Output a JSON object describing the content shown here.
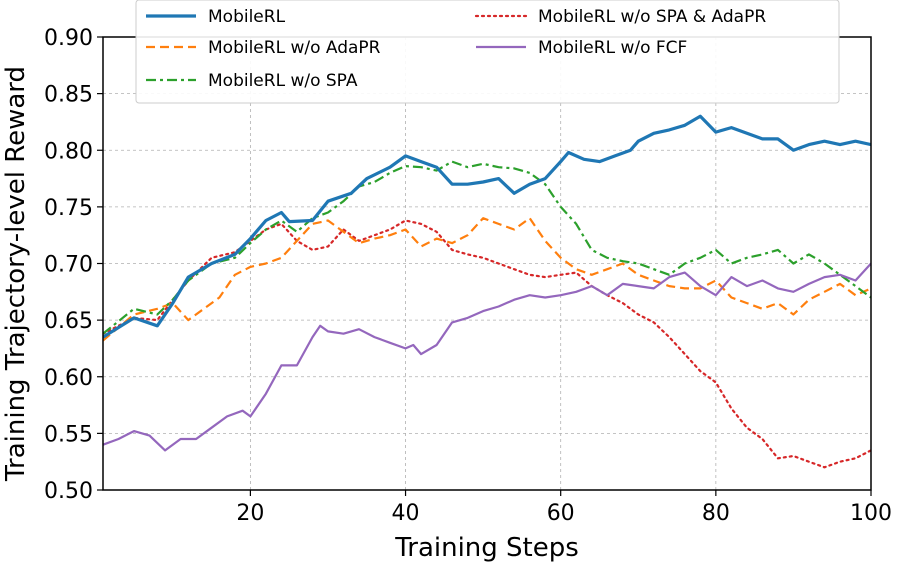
{
  "chart_data": {
    "type": "line",
    "title": "",
    "xlabel": "Training Steps",
    "ylabel": "Training Trajectory-level Reward",
    "xlim": [
      1,
      100
    ],
    "ylim": [
      0.5,
      0.9
    ],
    "xticks": [
      20,
      40,
      60,
      80,
      100
    ],
    "yticks": [
      0.5,
      0.55,
      0.6,
      0.65,
      0.7,
      0.75,
      0.8,
      0.85,
      0.9
    ],
    "xtick_labels": [
      "20",
      "40",
      "60",
      "80",
      "100"
    ],
    "ytick_labels": [
      "0.50",
      "0.55",
      "0.60",
      "0.65",
      "0.70",
      "0.75",
      "0.80",
      "0.85",
      "0.90"
    ],
    "grid": true,
    "legend_position": "top-center",
    "series": [
      {
        "name": "MobileRL",
        "color": "#1f77b4",
        "dash": "solid",
        "x": [
          1,
          5,
          8,
          10,
          12,
          15,
          18,
          20,
          22,
          24,
          25,
          28,
          30,
          33,
          35,
          38,
          40,
          42,
          44,
          46,
          48,
          50,
          52,
          54,
          56,
          58,
          60,
          61,
          63,
          65,
          67,
          69,
          70,
          72,
          74,
          76,
          78,
          80,
          82,
          84,
          86,
          88,
          90,
          92,
          94,
          96,
          98,
          100
        ],
        "values": [
          0.635,
          0.652,
          0.645,
          0.665,
          0.688,
          0.7,
          0.708,
          0.722,
          0.738,
          0.745,
          0.737,
          0.738,
          0.755,
          0.762,
          0.775,
          0.785,
          0.795,
          0.79,
          0.785,
          0.77,
          0.77,
          0.772,
          0.775,
          0.762,
          0.77,
          0.775,
          0.79,
          0.798,
          0.792,
          0.79,
          0.795,
          0.8,
          0.808,
          0.815,
          0.818,
          0.822,
          0.83,
          0.816,
          0.82,
          0.815,
          0.81,
          0.81,
          0.8,
          0.805,
          0.808,
          0.805,
          0.808,
          0.805
        ]
      },
      {
        "name": "MobileRL w/o AdaPR",
        "color": "#ff7f0e",
        "dash": "dashed",
        "x": [
          1,
          5,
          8,
          10,
          12,
          14,
          16,
          18,
          20,
          22,
          24,
          26,
          28,
          30,
          32,
          34,
          36,
          38,
          40,
          42,
          44,
          46,
          48,
          50,
          52,
          54,
          56,
          58,
          60,
          62,
          64,
          66,
          68,
          70,
          72,
          74,
          76,
          78,
          80,
          82,
          84,
          86,
          88,
          90,
          92,
          94,
          96,
          98,
          100
        ],
        "values": [
          0.632,
          0.655,
          0.66,
          0.665,
          0.65,
          0.66,
          0.67,
          0.69,
          0.697,
          0.7,
          0.705,
          0.72,
          0.735,
          0.738,
          0.728,
          0.718,
          0.722,
          0.725,
          0.73,
          0.715,
          0.722,
          0.718,
          0.725,
          0.74,
          0.735,
          0.73,
          0.74,
          0.72,
          0.705,
          0.695,
          0.69,
          0.695,
          0.7,
          0.69,
          0.685,
          0.68,
          0.678,
          0.678,
          0.685,
          0.67,
          0.665,
          0.66,
          0.665,
          0.655,
          0.668,
          0.675,
          0.682,
          0.672,
          0.678
        ]
      },
      {
        "name": "MobileRL w/o SPA",
        "color": "#2ca02c",
        "dash": "dashdot",
        "x": [
          1,
          5,
          8,
          10,
          12,
          15,
          18,
          20,
          22,
          24,
          26,
          28,
          30,
          32,
          34,
          36,
          38,
          40,
          42,
          44,
          46,
          48,
          50,
          52,
          54,
          56,
          58,
          60,
          62,
          64,
          66,
          68,
          70,
          72,
          74,
          76,
          78,
          80,
          82,
          84,
          86,
          88,
          90,
          92,
          94,
          96,
          98,
          100
        ],
        "values": [
          0.638,
          0.66,
          0.655,
          0.668,
          0.685,
          0.7,
          0.705,
          0.718,
          0.73,
          0.738,
          0.728,
          0.74,
          0.745,
          0.755,
          0.768,
          0.772,
          0.78,
          0.786,
          0.785,
          0.782,
          0.79,
          0.785,
          0.788,
          0.785,
          0.784,
          0.78,
          0.77,
          0.75,
          0.735,
          0.712,
          0.705,
          0.702,
          0.7,
          0.695,
          0.69,
          0.7,
          0.705,
          0.712,
          0.7,
          0.705,
          0.708,
          0.712,
          0.7,
          0.708,
          0.7,
          0.69,
          0.68,
          0.67
        ]
      },
      {
        "name": "MobileRL w/o SPA & AdaPR",
        "color": "#d62728",
        "dash": "dotted",
        "x": [
          1,
          5,
          8,
          10,
          12,
          15,
          18,
          20,
          22,
          24,
          26,
          28,
          30,
          32,
          34,
          36,
          38,
          40,
          42,
          44,
          46,
          48,
          50,
          52,
          54,
          56,
          58,
          60,
          62,
          64,
          66,
          68,
          70,
          72,
          74,
          76,
          78,
          80,
          82,
          84,
          86,
          88,
          90,
          92,
          94,
          96,
          98,
          100
        ],
        "values": [
          0.638,
          0.652,
          0.65,
          0.668,
          0.685,
          0.705,
          0.71,
          0.72,
          0.73,
          0.735,
          0.72,
          0.712,
          0.715,
          0.73,
          0.72,
          0.725,
          0.73,
          0.738,
          0.735,
          0.728,
          0.712,
          0.708,
          0.705,
          0.7,
          0.695,
          0.69,
          0.688,
          0.69,
          0.692,
          0.68,
          0.672,
          0.665,
          0.655,
          0.648,
          0.635,
          0.62,
          0.605,
          0.595,
          0.572,
          0.555,
          0.545,
          0.528,
          0.53,
          0.525,
          0.52,
          0.525,
          0.528,
          0.535
        ]
      },
      {
        "name": "MobileRL w/o FCF",
        "color": "#9467bd",
        "dash": "solid",
        "x": [
          1,
          3,
          5,
          7,
          9,
          11,
          13,
          15,
          17,
          19,
          20,
          22,
          24,
          26,
          28,
          29,
          30,
          32,
          34,
          36,
          38,
          40,
          41,
          42,
          44,
          46,
          48,
          50,
          52,
          54,
          56,
          58,
          60,
          62,
          64,
          66,
          68,
          70,
          72,
          74,
          76,
          78,
          80,
          82,
          84,
          86,
          88,
          90,
          92,
          94,
          96,
          98,
          100
        ],
        "values": [
          0.54,
          0.545,
          0.552,
          0.548,
          0.535,
          0.545,
          0.545,
          0.555,
          0.565,
          0.57,
          0.565,
          0.585,
          0.61,
          0.61,
          0.635,
          0.645,
          0.64,
          0.638,
          0.642,
          0.635,
          0.63,
          0.625,
          0.628,
          0.62,
          0.628,
          0.648,
          0.652,
          0.658,
          0.662,
          0.668,
          0.672,
          0.67,
          0.672,
          0.675,
          0.68,
          0.672,
          0.682,
          0.68,
          0.678,
          0.688,
          0.692,
          0.68,
          0.672,
          0.688,
          0.68,
          0.685,
          0.678,
          0.675,
          0.682,
          0.688,
          0.69,
          0.685,
          0.7
        ]
      }
    ]
  }
}
